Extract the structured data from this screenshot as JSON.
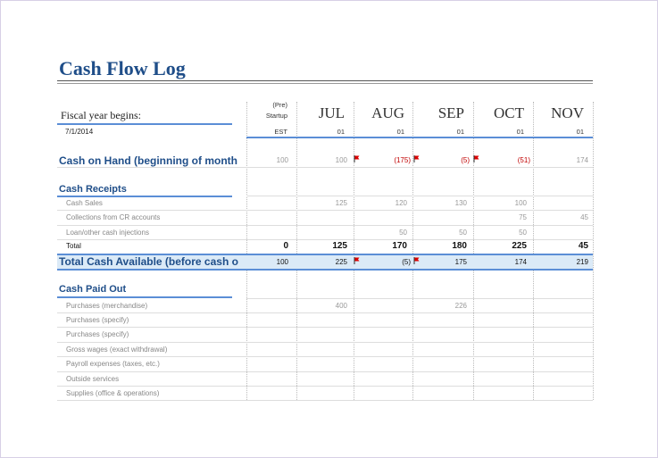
{
  "title": "Cash Flow Log",
  "fiscal": {
    "label": "Fiscal year begins:",
    "date": "7/1/2014"
  },
  "header": {
    "pre_line1": "(Pre)",
    "pre_line2": "Startup",
    "pre_sub": "EST",
    "months": [
      "JUL",
      "AUG",
      "SEP",
      "OCT",
      "NOV"
    ],
    "month_subs": [
      "01",
      "01",
      "01",
      "01",
      "01"
    ]
  },
  "cash_on_hand": {
    "label": "Cash on Hand (beginning of month",
    "values": [
      "100",
      "100",
      "(175)",
      "(5)",
      "(51)",
      "174"
    ]
  },
  "cash_receipts": {
    "title": "Cash Receipts",
    "rows": [
      {
        "label": "Cash Sales",
        "values": [
          "",
          "125",
          "120",
          "130",
          "100",
          ""
        ]
      },
      {
        "label": "Collections from CR accounts",
        "values": [
          "",
          "",
          "",
          "",
          "75",
          "45"
        ]
      },
      {
        "label": "Loan/other cash injections",
        "values": [
          "",
          "",
          "50",
          "50",
          "50",
          ""
        ]
      }
    ],
    "total_label": "Total",
    "total_values": [
      "0",
      "125",
      "170",
      "180",
      "225",
      "45"
    ]
  },
  "total_cash_available": {
    "label": "Total Cash Available (before cash o",
    "values": [
      "100",
      "225",
      "(5)",
      "175",
      "174",
      "219"
    ]
  },
  "cash_paid_out": {
    "title": "Cash Paid Out",
    "rows": [
      {
        "label": "Purchases (merchandise)",
        "values": [
          "",
          "400",
          "",
          "226",
          "",
          ""
        ]
      },
      {
        "label": "Purchases (specify)",
        "values": [
          "",
          "",
          "",
          "",
          "",
          ""
        ]
      },
      {
        "label": "Purchases (specify)",
        "values": [
          "",
          "",
          "",
          "",
          "",
          ""
        ]
      },
      {
        "label": "Gross wages (exact withdrawal)",
        "values": [
          "",
          "",
          "",
          "",
          "",
          ""
        ]
      },
      {
        "label": "Payroll expenses (taxes, etc.)",
        "values": [
          "",
          "",
          "",
          "",
          "",
          ""
        ]
      },
      {
        "label": "Outside services",
        "values": [
          "",
          "",
          "",
          "",
          "",
          ""
        ]
      },
      {
        "label": "Supplies (office & operations)",
        "values": [
          "",
          "",
          "",
          "",
          "",
          ""
        ]
      }
    ]
  },
  "colors": {
    "title": "#1f4e89",
    "accent": "#5b8ed6",
    "negative": "#c00000",
    "band": "#dbeaf7"
  }
}
